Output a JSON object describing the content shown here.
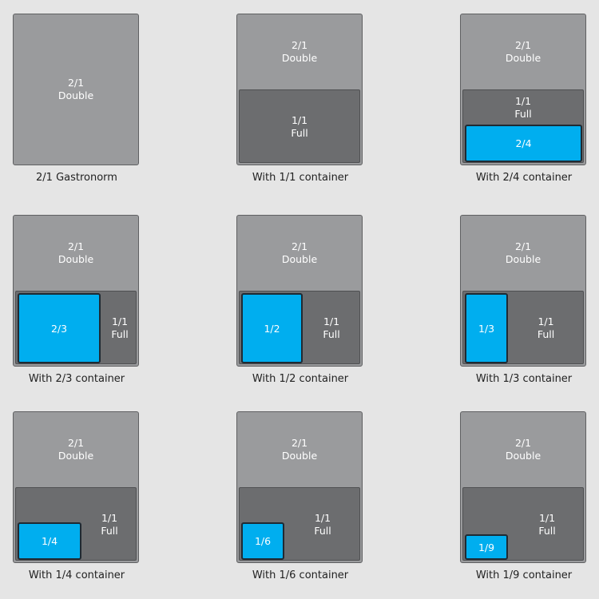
{
  "colors": {
    "background": "#e5e5e5",
    "double_pan": "#9a9b9d",
    "full_container": "#6c6d6f",
    "highlight_container": "#00aeef"
  },
  "diagrams": [
    {
      "double_line1": "2/1",
      "double_line2": "Double",
      "caption": "2/1 Gastronorm"
    },
    {
      "double_line1": "2/1",
      "double_line2": "Double",
      "full_line1": "1/1",
      "full_line2": "Full",
      "caption": "With 1/1 container"
    },
    {
      "double_line1": "2/1",
      "double_line2": "Double",
      "full_line1": "1/1",
      "full_line2": "Full",
      "highlight": "2/4",
      "caption": "With 2/4 container"
    },
    {
      "double_line1": "2/1",
      "double_line2": "Double",
      "full_line1": "1/1",
      "full_line2": "Full",
      "highlight": "2/3",
      "caption": "With 2/3 container"
    },
    {
      "double_line1": "2/1",
      "double_line2": "Double",
      "full_line1": "1/1",
      "full_line2": "Full",
      "highlight": "1/2",
      "caption": "With 1/2 container"
    },
    {
      "double_line1": "2/1",
      "double_line2": "Double",
      "full_line1": "1/1",
      "full_line2": "Full",
      "highlight": "1/3",
      "caption": "With 1/3 container"
    },
    {
      "double_line1": "2/1",
      "double_line2": "Double",
      "full_line1": "1/1",
      "full_line2": "Full",
      "highlight": "1/4",
      "caption": "With 1/4 container"
    },
    {
      "double_line1": "2/1",
      "double_line2": "Double",
      "full_line1": "1/1",
      "full_line2": "Full",
      "highlight": "1/6",
      "caption": "With 1/6 container"
    },
    {
      "double_line1": "2/1",
      "double_line2": "Double",
      "full_line1": "1/1",
      "full_line2": "Full",
      "highlight": "1/9",
      "caption": "With 1/9 container"
    }
  ]
}
